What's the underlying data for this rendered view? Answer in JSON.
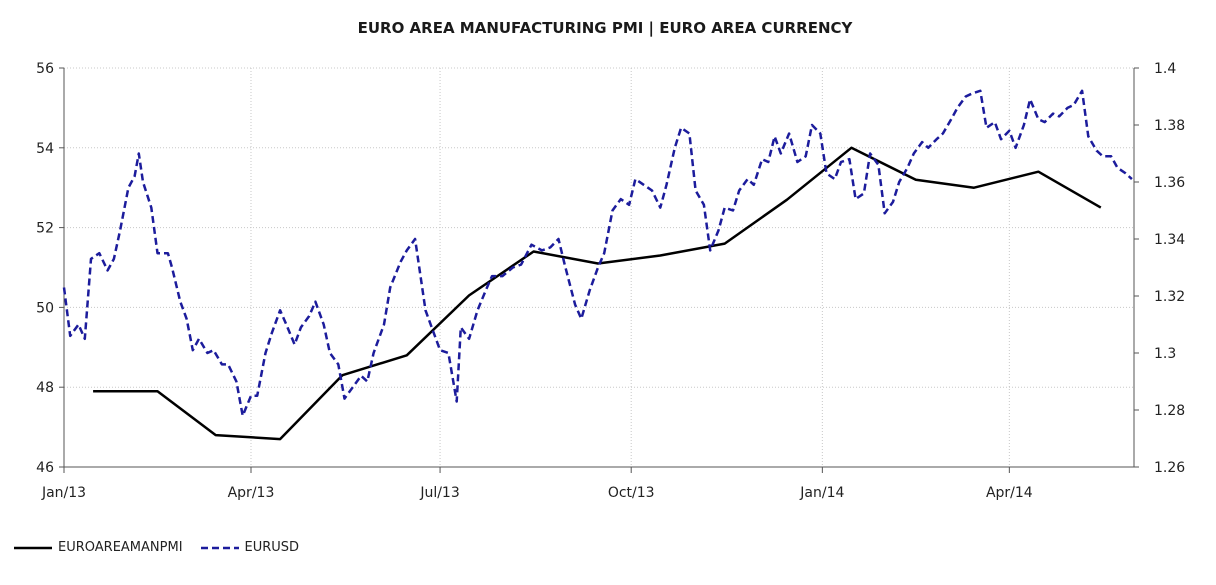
{
  "chart_data": {
    "type": "line",
    "title": "EURO AREA MANUFACTURING PMI |  EURO AREA CURRENCY",
    "x_ticks": [
      "Jan/13",
      "Apr/13",
      "Jul/13",
      "Oct/13",
      "Jan/14",
      "Apr/14"
    ],
    "x_range": [
      "2013-01-01",
      "2014-05-31"
    ],
    "y_left": {
      "lim": [
        46,
        56
      ],
      "ticks": [
        "46",
        "48",
        "50",
        "52",
        "54",
        "56"
      ]
    },
    "y_right": {
      "lim": [
        1.26,
        1.4
      ],
      "ticks": [
        "1.26",
        "1.28",
        "1.3",
        "1.32",
        "1.34",
        "1.36",
        "1.38",
        "1.4"
      ]
    },
    "grid": true,
    "legend_position": "bottom-left",
    "series": [
      {
        "name": "EUROAREAMANPMI",
        "axis": "left",
        "color": "#000000",
        "style": "solid",
        "points": [
          [
            "2013-01-15",
            47.9
          ],
          [
            "2013-02-15",
            47.9
          ],
          [
            "2013-03-15",
            46.8
          ],
          [
            "2013-04-15",
            46.7
          ],
          [
            "2013-05-15",
            48.3
          ],
          [
            "2013-06-15",
            48.8
          ],
          [
            "2013-07-15",
            50.3
          ],
          [
            "2013-08-15",
            51.4
          ],
          [
            "2013-09-15",
            51.1
          ],
          [
            "2013-10-15",
            51.3
          ],
          [
            "2013-11-15",
            51.6
          ],
          [
            "2013-12-15",
            52.7
          ],
          [
            "2014-01-15",
            54.0
          ],
          [
            "2014-02-15",
            53.2
          ],
          [
            "2014-03-15",
            53.0
          ],
          [
            "2014-04-15",
            53.4
          ],
          [
            "2014-05-15",
            52.5
          ]
        ]
      },
      {
        "name": "EURUSD",
        "axis": "right",
        "color": "#1c1c9c",
        "style": "dashed",
        "points": [
          [
            "2013-01-01",
            1.323
          ],
          [
            "2013-01-04",
            1.306
          ],
          [
            "2013-01-08",
            1.31
          ],
          [
            "2013-01-11",
            1.305
          ],
          [
            "2013-01-14",
            1.333
          ],
          [
            "2013-01-18",
            1.335
          ],
          [
            "2013-01-22",
            1.329
          ],
          [
            "2013-01-25",
            1.333
          ],
          [
            "2013-01-28",
            1.343
          ],
          [
            "2013-02-01",
            1.358
          ],
          [
            "2013-02-04",
            1.362
          ],
          [
            "2013-02-06",
            1.37
          ],
          [
            "2013-02-08",
            1.36
          ],
          [
            "2013-02-12",
            1.351
          ],
          [
            "2013-02-15",
            1.335
          ],
          [
            "2013-02-20",
            1.335
          ],
          [
            "2013-02-22",
            1.33
          ],
          [
            "2013-02-26",
            1.318
          ],
          [
            "2013-03-01",
            1.312
          ],
          [
            "2013-03-04",
            1.301
          ],
          [
            "2013-03-07",
            1.305
          ],
          [
            "2013-03-11",
            1.3
          ],
          [
            "2013-03-14",
            1.301
          ],
          [
            "2013-03-18",
            1.296
          ],
          [
            "2013-03-21",
            1.296
          ],
          [
            "2013-03-25",
            1.29
          ],
          [
            "2013-03-28",
            1.278
          ],
          [
            "2013-04-01",
            1.285
          ],
          [
            "2013-04-04",
            1.285
          ],
          [
            "2013-04-08",
            1.3
          ],
          [
            "2013-04-11",
            1.307
          ],
          [
            "2013-04-15",
            1.315
          ],
          [
            "2013-04-18",
            1.31
          ],
          [
            "2013-04-22",
            1.303
          ],
          [
            "2013-04-25",
            1.309
          ],
          [
            "2013-04-29",
            1.313
          ],
          [
            "2013-05-02",
            1.318
          ],
          [
            "2013-05-06",
            1.31
          ],
          [
            "2013-05-09",
            1.3
          ],
          [
            "2013-05-13",
            1.296
          ],
          [
            "2013-05-16",
            1.284
          ],
          [
            "2013-05-20",
            1.288
          ],
          [
            "2013-05-24",
            1.292
          ],
          [
            "2013-05-27",
            1.29
          ],
          [
            "2013-05-30",
            1.3
          ],
          [
            "2013-06-04",
            1.31
          ],
          [
            "2013-06-07",
            1.323
          ],
          [
            "2013-06-12",
            1.332
          ],
          [
            "2013-06-15",
            1.336
          ],
          [
            "2013-06-19",
            1.34
          ],
          [
            "2013-06-24",
            1.315
          ],
          [
            "2013-06-28",
            1.307
          ],
          [
            "2013-07-01",
            1.301
          ],
          [
            "2013-07-05",
            1.3
          ],
          [
            "2013-07-09",
            1.283
          ],
          [
            "2013-07-11",
            1.309
          ],
          [
            "2013-07-15",
            1.305
          ],
          [
            "2013-07-19",
            1.315
          ],
          [
            "2013-07-23",
            1.322
          ],
          [
            "2013-07-26",
            1.327
          ],
          [
            "2013-07-31",
            1.327
          ],
          [
            "2013-08-05",
            1.33
          ],
          [
            "2013-08-09",
            1.331
          ],
          [
            "2013-08-14",
            1.338
          ],
          [
            "2013-08-19",
            1.336
          ],
          [
            "2013-08-23",
            1.337
          ],
          [
            "2013-08-27",
            1.34
          ],
          [
            "2013-08-30",
            1.331
          ],
          [
            "2013-09-04",
            1.317
          ],
          [
            "2013-09-07",
            1.312
          ],
          [
            "2013-09-11",
            1.322
          ],
          [
            "2013-09-15",
            1.33
          ],
          [
            "2013-09-18",
            1.335
          ],
          [
            "2013-09-22",
            1.35
          ],
          [
            "2013-09-26",
            1.354
          ],
          [
            "2013-09-30",
            1.352
          ],
          [
            "2013-10-03",
            1.361
          ],
          [
            "2013-10-07",
            1.359
          ],
          [
            "2013-10-11",
            1.357
          ],
          [
            "2013-10-15",
            1.351
          ],
          [
            "2013-10-18",
            1.359
          ],
          [
            "2013-10-22",
            1.372
          ],
          [
            "2013-10-25",
            1.379
          ],
          [
            "2013-10-29",
            1.377
          ],
          [
            "2013-11-01",
            1.357
          ],
          [
            "2013-11-05",
            1.352
          ],
          [
            "2013-11-08",
            1.336
          ],
          [
            "2013-11-12",
            1.343
          ],
          [
            "2013-11-15",
            1.351
          ],
          [
            "2013-11-19",
            1.35
          ],
          [
            "2013-11-22",
            1.357
          ],
          [
            "2013-11-26",
            1.361
          ],
          [
            "2013-11-29",
            1.359
          ],
          [
            "2013-12-03",
            1.368
          ],
          [
            "2013-12-06",
            1.367
          ],
          [
            "2013-12-09",
            1.376
          ],
          [
            "2013-12-12",
            1.37
          ],
          [
            "2013-12-16",
            1.377
          ],
          [
            "2013-12-20",
            1.367
          ],
          [
            "2013-12-24",
            1.369
          ],
          [
            "2013-12-27",
            1.38
          ],
          [
            "2013-12-31",
            1.377
          ],
          [
            "2014-01-03",
            1.363
          ],
          [
            "2014-01-07",
            1.361
          ],
          [
            "2014-01-10",
            1.367
          ],
          [
            "2014-01-14",
            1.368
          ],
          [
            "2014-01-17",
            1.354
          ],
          [
            "2014-01-21",
            1.356
          ],
          [
            "2014-01-24",
            1.37
          ],
          [
            "2014-01-28",
            1.366
          ],
          [
            "2014-01-31",
            1.349
          ],
          [
            "2014-02-04",
            1.353
          ],
          [
            "2014-02-07",
            1.36
          ],
          [
            "2014-02-11",
            1.365
          ],
          [
            "2014-02-14",
            1.37
          ],
          [
            "2014-02-18",
            1.374
          ],
          [
            "2014-02-21",
            1.372
          ],
          [
            "2014-02-25",
            1.375
          ],
          [
            "2014-02-28",
            1.377
          ],
          [
            "2014-03-04",
            1.382
          ],
          [
            "2014-03-07",
            1.386
          ],
          [
            "2014-03-11",
            1.39
          ],
          [
            "2014-03-14",
            1.391
          ],
          [
            "2014-03-18",
            1.392
          ],
          [
            "2014-03-21",
            1.379
          ],
          [
            "2014-03-25",
            1.381
          ],
          [
            "2014-03-28",
            1.375
          ],
          [
            "2014-04-01",
            1.378
          ],
          [
            "2014-04-04",
            1.372
          ],
          [
            "2014-04-08",
            1.38
          ],
          [
            "2014-04-11",
            1.389
          ],
          [
            "2014-04-15",
            1.382
          ],
          [
            "2014-04-18",
            1.381
          ],
          [
            "2014-04-22",
            1.384
          ],
          [
            "2014-04-25",
            1.383
          ],
          [
            "2014-04-29",
            1.386
          ],
          [
            "2014-05-02",
            1.387
          ],
          [
            "2014-05-06",
            1.392
          ],
          [
            "2014-05-09",
            1.376
          ],
          [
            "2014-05-13",
            1.371
          ],
          [
            "2014-05-16",
            1.369
          ],
          [
            "2014-05-20",
            1.369
          ],
          [
            "2014-05-23",
            1.365
          ],
          [
            "2014-05-27",
            1.363
          ],
          [
            "2014-05-30",
            1.361
          ]
        ]
      }
    ]
  }
}
